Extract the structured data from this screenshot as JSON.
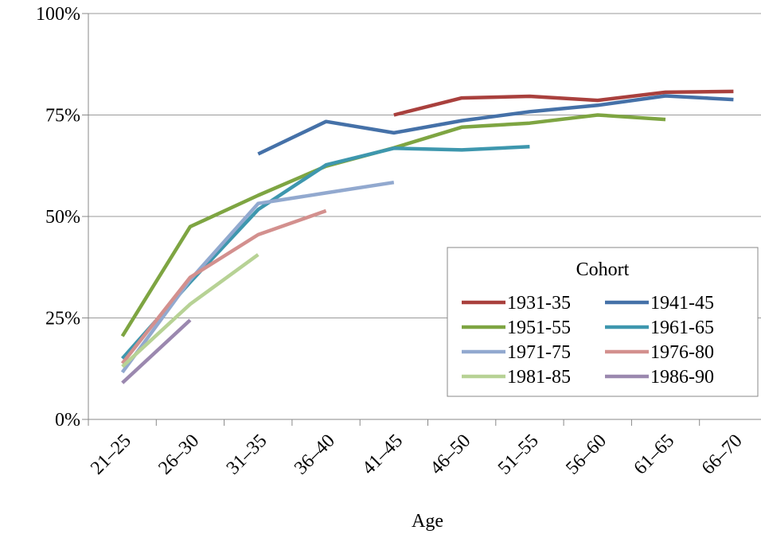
{
  "chart_data": {
    "type": "line",
    "xlabel": "Age",
    "ylabel": "",
    "ylim": [
      0,
      100
    ],
    "y_ticks": [
      0,
      25,
      50,
      75,
      100
    ],
    "y_tick_labels": [
      "0%",
      "25%",
      "50%",
      "75%",
      "100%"
    ],
    "grid": "horizontal",
    "categories": [
      "21–25",
      "26–30",
      "31–35",
      "36–40",
      "41–45",
      "46–50",
      "51–55",
      "56–60",
      "61–65",
      "66–70"
    ],
    "legend": {
      "title": "Cohort",
      "placement": "center-right"
    },
    "series": [
      {
        "name": "1931-35",
        "color": "#A9403D",
        "values": [
          null,
          null,
          null,
          null,
          75,
          79.2,
          79.6,
          78.6,
          80.6,
          80.8
        ]
      },
      {
        "name": "1941-45",
        "color": "#4571A8",
        "values": [
          null,
          null,
          65.4,
          73.4,
          70.6,
          73.6,
          75.8,
          77.4,
          79.7,
          78.8
        ]
      },
      {
        "name": "1951-55",
        "color": "#7EA542",
        "values": [
          20.5,
          47.5,
          55.2,
          62.4,
          66.9,
          72,
          73,
          75,
          73.9,
          null
        ]
      },
      {
        "name": "1961-65",
        "color": "#3E97AE",
        "values": [
          15,
          33.8,
          51.7,
          62.7,
          66.8,
          66.4,
          67.2,
          null,
          null,
          null
        ]
      },
      {
        "name": "1971-75",
        "color": "#92A9CF",
        "values": [
          11.6,
          34.4,
          53.2,
          55.8,
          58.4,
          null,
          null,
          null,
          null,
          null
        ]
      },
      {
        "name": "1976-80",
        "color": "#D3908E",
        "values": [
          13.8,
          35,
          45.5,
          51.4,
          null,
          null,
          null,
          null,
          null,
          null
        ]
      },
      {
        "name": "1981-85",
        "color": "#B7D295",
        "values": [
          13,
          28.4,
          40.6,
          null,
          null,
          null,
          null,
          null,
          null,
          null
        ]
      },
      {
        "name": "1986-90",
        "color": "#9B88AF",
        "values": [
          9,
          24.5,
          null,
          null,
          null,
          null,
          null,
          null,
          null,
          null
        ]
      }
    ]
  }
}
